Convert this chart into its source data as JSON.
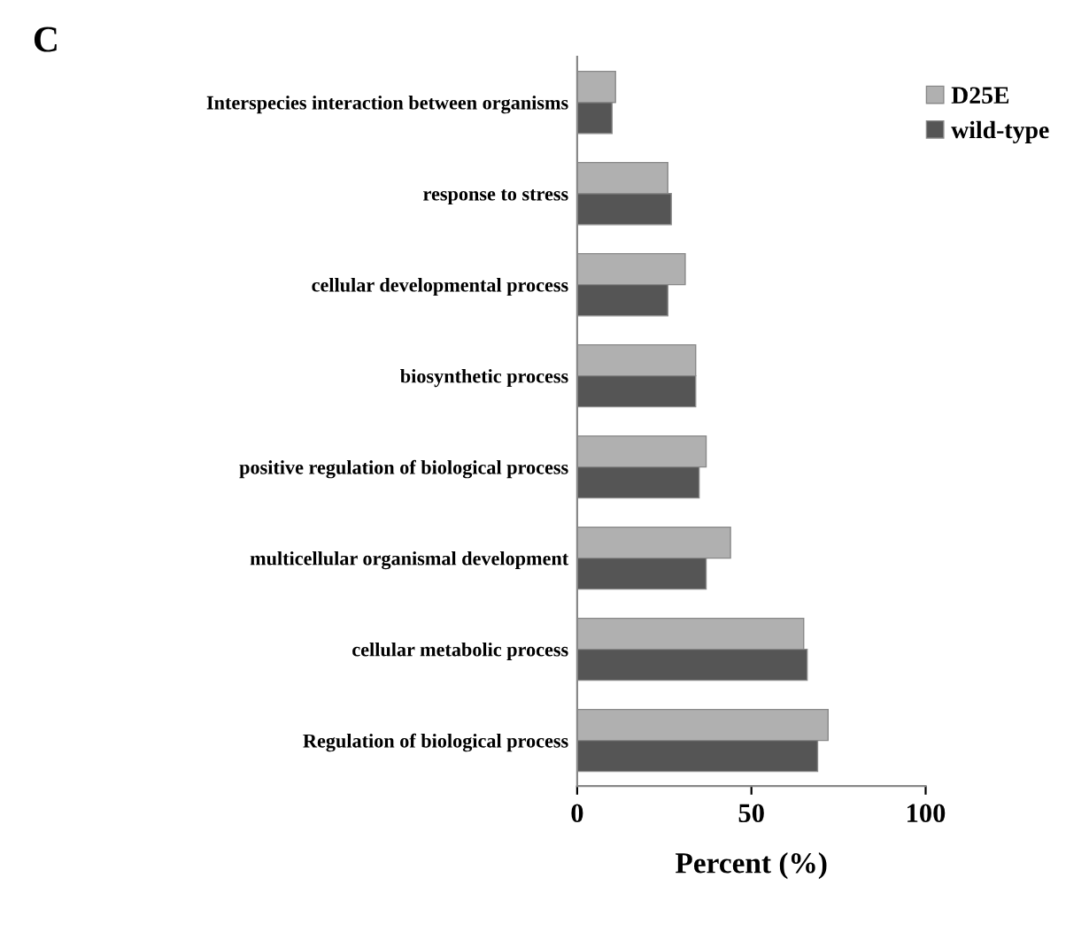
{
  "chart_data": {
    "type": "bar",
    "orientation": "horizontal",
    "xlabel": "Percent (%)",
    "annotations": [
      "C"
    ],
    "categories": [
      "Interspecies interaction between organisms",
      "response to stress",
      "cellular developmental process",
      "biosynthetic process",
      "positive regulation of biological process",
      "multicellular organismal development",
      "cellular metabolic process",
      "Regulation of biological process"
    ],
    "series": [
      {
        "name": "D25E",
        "color": "#b0b0b0",
        "values": [
          11,
          26,
          31,
          34,
          37,
          44,
          65,
          72
        ]
      },
      {
        "name": "wild-type",
        "color": "#555555",
        "values": [
          10,
          27,
          26,
          34,
          35,
          37,
          66,
          69
        ]
      }
    ],
    "xlim": [
      0,
      100
    ],
    "xticks": [
      0,
      50,
      100
    ],
    "grid": false,
    "legend": "top right"
  }
}
